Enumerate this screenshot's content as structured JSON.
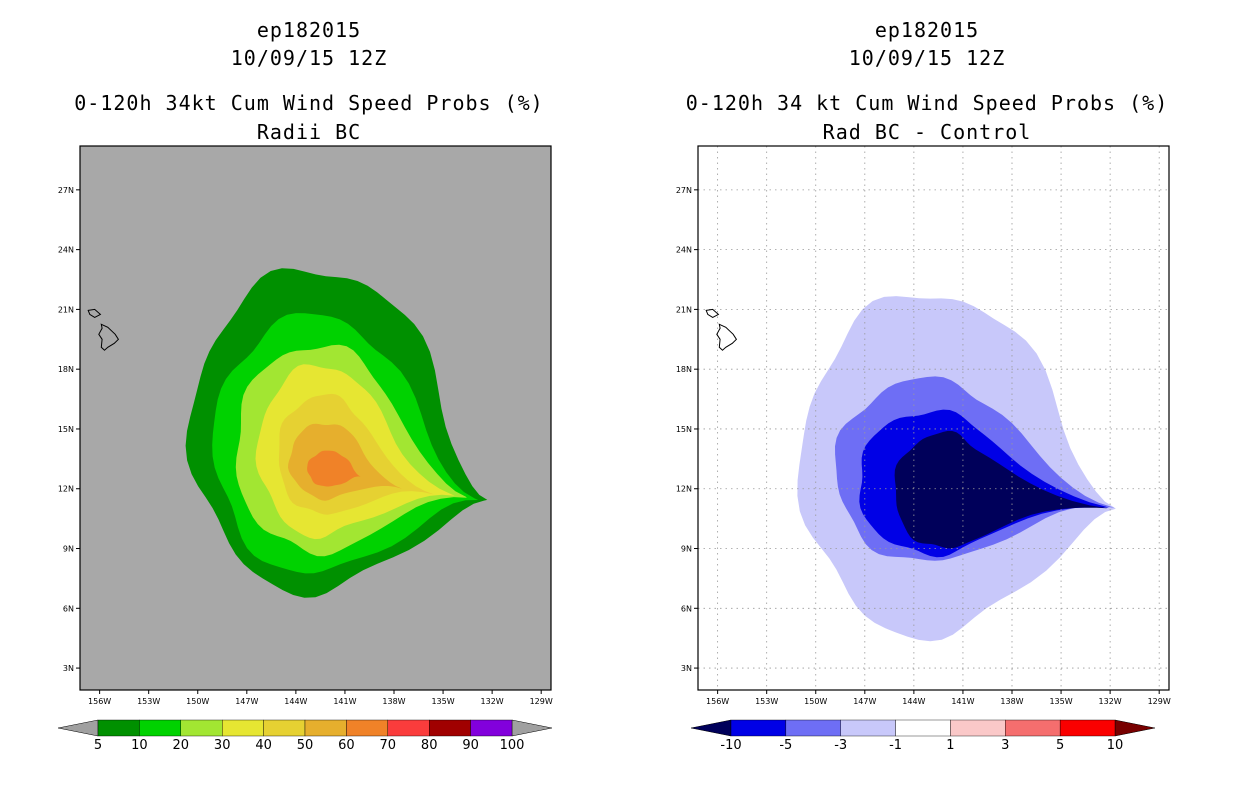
{
  "chart_data": [
    {
      "type": "heatmap",
      "storm_id": "ep182015",
      "date": "10/09/15 12Z",
      "title": "0-120h 34kt Cum Wind Speed Probs (%)",
      "subtitle": "Radii BC",
      "x_ticks": [
        "156W",
        "153W",
        "150W",
        "147W",
        "144W",
        "141W",
        "138W",
        "135W",
        "132W",
        "129W"
      ],
      "y_ticks": [
        "27N",
        "24N",
        "21N",
        "18N",
        "15N",
        "12N",
        "9N",
        "6N",
        "3N"
      ],
      "xlim": [
        -157.2,
        -128.4
      ],
      "ylim": [
        1.9,
        29.2
      ],
      "background_color": "#a8a8a8",
      "colorbar": {
        "labels": [
          "5",
          "10",
          "20",
          "30",
          "40",
          "50",
          "60",
          "70",
          "80",
          "90",
          "100"
        ],
        "colors": [
          "#009000",
          "#00d200",
          "#a2e632",
          "#e6e632",
          "#e6d132",
          "#e6af2d",
          "#f08228",
          "#fa3c3c",
          "#a00000",
          "#8200dc"
        ],
        "under_color": "#a0a0a0",
        "over_color": "#a0a0a0"
      },
      "contours": [
        {
          "level": 5,
          "color": "#009000",
          "center": [
            -142.8,
            14.9
          ],
          "rx": 7.6,
          "ry": 8.1,
          "tip": [
            -132.1,
            11.4
          ]
        },
        {
          "level": 10,
          "color": "#00d200",
          "center": [
            -142.9,
            14.2
          ],
          "rx": 6.1,
          "ry": 6.5,
          "tip": [
            -132.6,
            11.4
          ]
        },
        {
          "level": 20,
          "color": "#a2e632",
          "center": [
            -142.7,
            14.0
          ],
          "rx": 5.0,
          "ry": 5.2,
          "tip": [
            -133.2,
            11.5
          ]
        },
        {
          "level": 30,
          "color": "#e6e632",
          "center": [
            -142.5,
            13.9
          ],
          "rx": 3.8,
          "ry": 4.3,
          "tip": [
            -134.0,
            11.6
          ]
        },
        {
          "level": 40,
          "color": "#e6d132",
          "center": [
            -142.3,
            13.7
          ],
          "rx": 2.8,
          "ry": 3.0,
          "tip": [
            -135.5,
            11.7
          ]
        },
        {
          "level": 50,
          "color": "#e6af2d",
          "center": [
            -142.2,
            13.4
          ],
          "rx": 2.2,
          "ry": 1.9,
          "tip": [
            -137.5,
            12.0
          ]
        },
        {
          "level": 60,
          "color": "#f08228",
          "center": [
            -142.0,
            13.0
          ],
          "rx": 1.3,
          "ry": 0.9,
          "tip": [
            -140.0,
            12.6
          ]
        }
      ]
    },
    {
      "type": "heatmap",
      "storm_id": "ep182015",
      "date": "10/09/15 12Z",
      "title": "0-120h 34 kt Cum Wind Speed Probs (%)",
      "subtitle": "Rad BC - Control",
      "x_ticks": [
        "156W",
        "153W",
        "150W",
        "147W",
        "144W",
        "141W",
        "138W",
        "135W",
        "132W",
        "129W"
      ],
      "y_ticks": [
        "27N",
        "24N",
        "21N",
        "18N",
        "15N",
        "12N",
        "9N",
        "6N",
        "3N"
      ],
      "xlim": [
        -157.2,
        -128.4
      ],
      "ylim": [
        1.9,
        29.2
      ],
      "background_color": "#ffffff",
      "grid": true,
      "colorbar": {
        "labels": [
          "-10",
          "-5",
          "-3",
          "-1",
          "1",
          "3",
          "5",
          "10"
        ],
        "colors": [
          "#0000e6",
          "#6e6ef5",
          "#c8c8fa",
          "#ffffff",
          "#fac8c8",
          "#f56e6e",
          "#fa0000"
        ],
        "under_color": "#00005a",
        "over_color": "#780000"
      },
      "contours": [
        {
          "level": -1,
          "color": "#c8c8fa",
          "center": [
            -143.0,
            13.2
          ],
          "rx": 7.9,
          "ry": 8.6,
          "tip": [
            -131.4,
            11.0
          ]
        },
        {
          "level": -3,
          "color": "#6e6ef5",
          "center": [
            -143.2,
            12.9
          ],
          "rx": 5.6,
          "ry": 4.6,
          "tip": [
            -131.5,
            11.0
          ]
        },
        {
          "level": -5,
          "color": "#0000e6",
          "center": [
            -143.0,
            12.3
          ],
          "rx": 4.4,
          "ry": 3.6,
          "tip": [
            -131.6,
            11.0
          ]
        },
        {
          "level": -10,
          "color": "#00005a",
          "center": [
            -142.2,
            11.9
          ],
          "rx": 3.0,
          "ry": 2.9,
          "tip": [
            -131.9,
            11.0
          ]
        }
      ]
    }
  ]
}
